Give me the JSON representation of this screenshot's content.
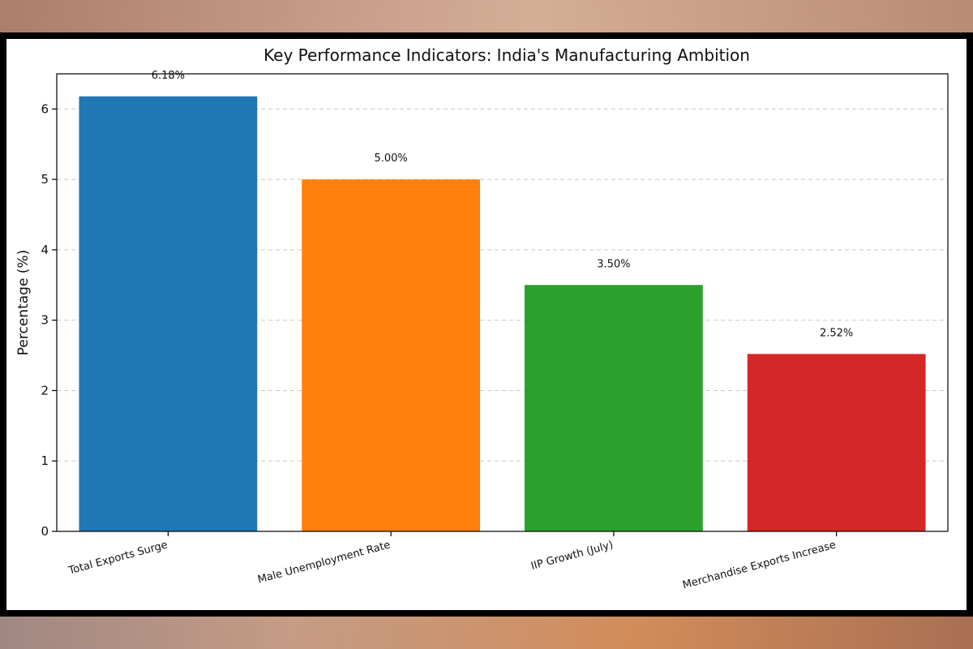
{
  "chart_data": {
    "type": "bar",
    "title": "Key Performance Indicators: India's Manufacturing Ambition",
    "xlabel": "",
    "ylabel": "Percentage (%)",
    "categories": [
      "Total Exports Surge",
      "Male Unemployment Rate",
      "IIP Growth (July)",
      "Merchandise Exports Increase"
    ],
    "values": [
      6.18,
      5.0,
      3.5,
      2.52
    ],
    "value_labels": [
      "6.18%",
      "5.00%",
      "3.50%",
      "2.52%"
    ],
    "colors": [
      "#1f77b4",
      "#ff7f0e",
      "#2ca02c",
      "#d62728"
    ],
    "ylim": [
      0,
      6.5
    ],
    "yticks": [
      0,
      1,
      2,
      3,
      4,
      5,
      6
    ],
    "ytick_labels": [
      "0",
      "1",
      "2",
      "3",
      "4",
      "5",
      "6"
    ],
    "grid": "y-dashed",
    "legend": "none"
  }
}
